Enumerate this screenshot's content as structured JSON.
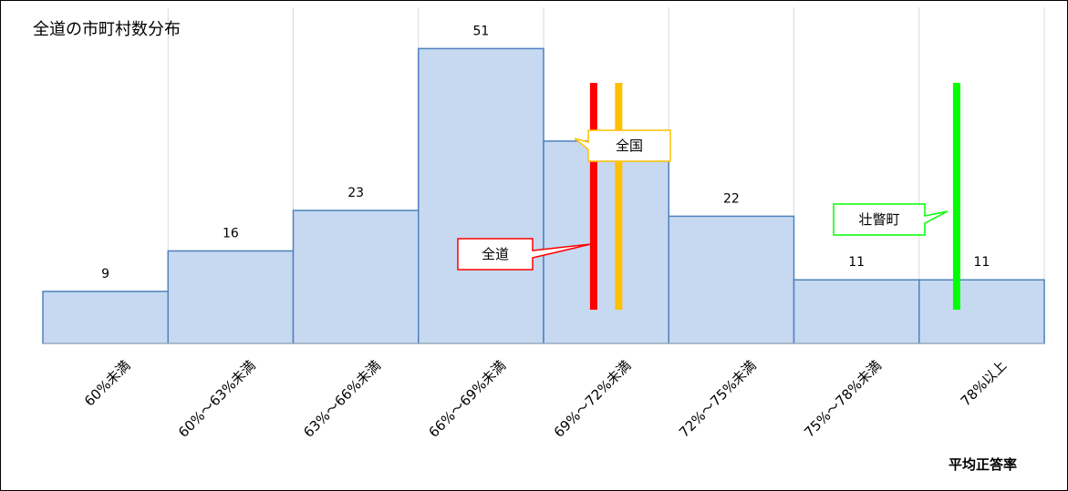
{
  "chart_data": {
    "type": "bar",
    "title": "全道の市町村数分布",
    "xlabel": "平均正答率",
    "ylabel": "",
    "categories": [
      "60%未満",
      "60%～63%未満",
      "63%～66%未満",
      "66%～69%未満",
      "69%～72%未満",
      "72%～75%未満",
      "75%～78%未満",
      "78%以上"
    ],
    "values": [
      9,
      16,
      23,
      51,
      35,
      22,
      11,
      11
    ],
    "data_labels": [
      "9",
      "16",
      "23",
      "51",
      "",
      "22",
      "11",
      "11"
    ],
    "ylim": [
      0,
      52
    ],
    "grid": "vertical",
    "colors": {
      "bar_fill": "#c6d9f1",
      "bar_stroke": "#4f81bd",
      "grid": "#d9d9d9"
    },
    "markers": [
      {
        "label": "全道",
        "value_percent": 70.2,
        "color": "#ff0000"
      },
      {
        "label": "全国",
        "value_percent": 70.8,
        "color": "#ffc000"
      },
      {
        "label": "壮瞥町",
        "value_percent": 78.9,
        "color": "#00ff00"
      }
    ]
  }
}
